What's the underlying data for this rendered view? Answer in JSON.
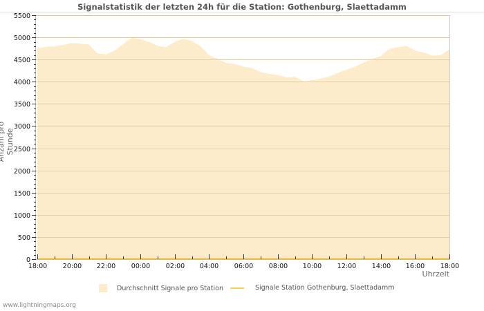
{
  "chart_data": {
    "type": "area",
    "title": "Signalstatistik der letzten 24h für die Station: Gothenburg, Slaettadamm",
    "xlabel": "Uhrzeit",
    "ylabel": "Anzahl pro Stunde",
    "ylim": [
      0,
      5500
    ],
    "yticks": [
      0,
      500,
      1000,
      1500,
      2000,
      2500,
      3000,
      3500,
      4000,
      4500,
      5000,
      5500
    ],
    "xtick_labels": [
      "18:00",
      "20:00",
      "22:00",
      "00:00",
      "02:00",
      "04:00",
      "06:00",
      "08:00",
      "10:00",
      "12:00",
      "14:00",
      "16:00",
      "18:00"
    ],
    "grid": true,
    "legend_position": "bottom",
    "x": [
      "18:00",
      "18:30",
      "19:00",
      "19:30",
      "20:00",
      "20:30",
      "21:00",
      "21:30",
      "22:00",
      "22:30",
      "23:00",
      "23:30",
      "00:00",
      "00:30",
      "01:00",
      "01:30",
      "02:00",
      "02:30",
      "03:00",
      "03:30",
      "04:00",
      "04:30",
      "05:00",
      "05:30",
      "06:00",
      "06:30",
      "07:00",
      "07:30",
      "08:00",
      "08:30",
      "09:00",
      "09:30",
      "10:00",
      "10:30",
      "11:00",
      "11:30",
      "12:00",
      "12:30",
      "13:00",
      "13:30",
      "14:00",
      "14:30",
      "15:00",
      "15:30",
      "16:00",
      "16:30",
      "17:00",
      "17:30",
      "18:00"
    ],
    "series": [
      {
        "name": "Durchschnitt Signale pro Station",
        "type": "area",
        "color": "#fdeccb",
        "values": [
          4750,
          4790,
          4800,
          4830,
          4870,
          4860,
          4840,
          4640,
          4620,
          4700,
          4850,
          4990,
          4960,
          4900,
          4810,
          4780,
          4900,
          4970,
          4920,
          4800,
          4600,
          4510,
          4420,
          4400,
          4340,
          4310,
          4220,
          4180,
          4150,
          4100,
          4110,
          4010,
          4030,
          4070,
          4120,
          4200,
          4270,
          4340,
          4430,
          4510,
          4580,
          4740,
          4780,
          4810,
          4700,
          4660,
          4590,
          4600,
          4730
        ]
      },
      {
        "name": "Signale Station Gothenburg, Slaettadamm",
        "type": "line",
        "color": "#f7cd4a",
        "values": [
          0,
          0,
          0,
          0,
          0,
          0,
          0,
          0,
          0,
          0,
          0,
          0,
          0,
          0,
          0,
          0,
          0,
          0,
          0,
          0,
          0,
          0,
          0,
          0,
          0,
          0,
          0,
          0,
          0,
          0,
          0,
          0,
          0,
          0,
          0,
          0,
          0,
          0,
          0,
          0,
          0,
          0,
          0,
          0,
          0,
          0,
          0,
          0,
          0
        ]
      }
    ]
  },
  "legend": {
    "items": [
      {
        "label": "Durchschnitt Signale pro Station",
        "color": "#fdeccb"
      },
      {
        "label": "Signale Station Gothenburg, Slaettadamm",
        "color": "#f7cd4a"
      }
    ]
  },
  "footer": "www.lightningmaps.org"
}
